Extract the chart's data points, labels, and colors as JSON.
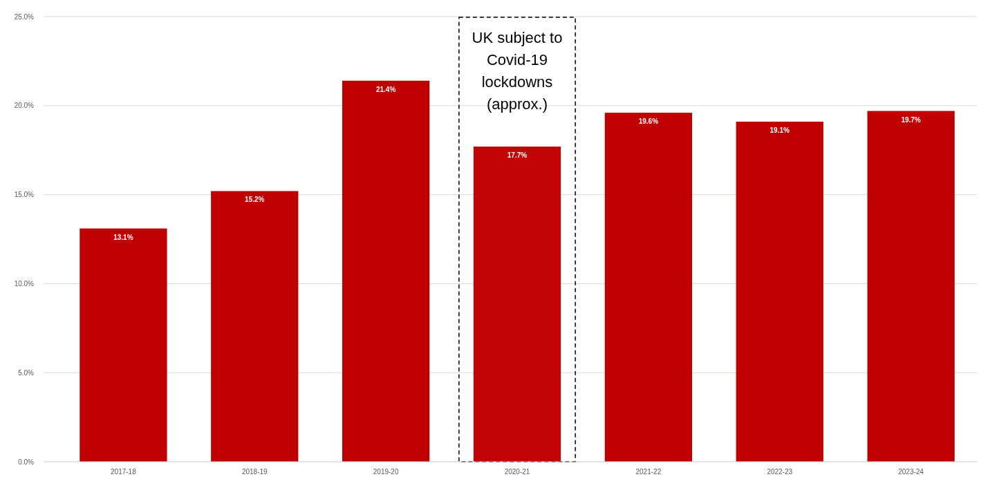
{
  "chart_data": {
    "type": "bar",
    "categories": [
      "2017-18",
      "2018-19",
      "2019-20",
      "2020-21",
      "2021-22",
      "2022-23",
      "2023-24"
    ],
    "values": [
      13.1,
      15.2,
      21.4,
      17.7,
      19.6,
      19.1,
      19.7
    ],
    "value_labels": [
      "13.1%",
      "15.2%",
      "21.4%",
      "17.7%",
      "19.6%",
      "19.1%",
      "19.7%"
    ],
    "color": "#c00000",
    "ylim": [
      0,
      25
    ],
    "yticks": [
      {
        "value": 0,
        "label": "0.0%"
      },
      {
        "value": 5,
        "label": "5.0%"
      },
      {
        "value": 10,
        "label": "10.0%"
      },
      {
        "value": 15,
        "label": "15.0%"
      },
      {
        "value": 20,
        "label": "20.0%"
      },
      {
        "value": 25,
        "label": "25.0%"
      }
    ],
    "grid": "y",
    "bands": [
      {
        "axis": "x",
        "from": "2020-21",
        "to": "2020-21",
        "label": "UK subject to Covid-19 lockdowns (approx.)"
      }
    ]
  }
}
